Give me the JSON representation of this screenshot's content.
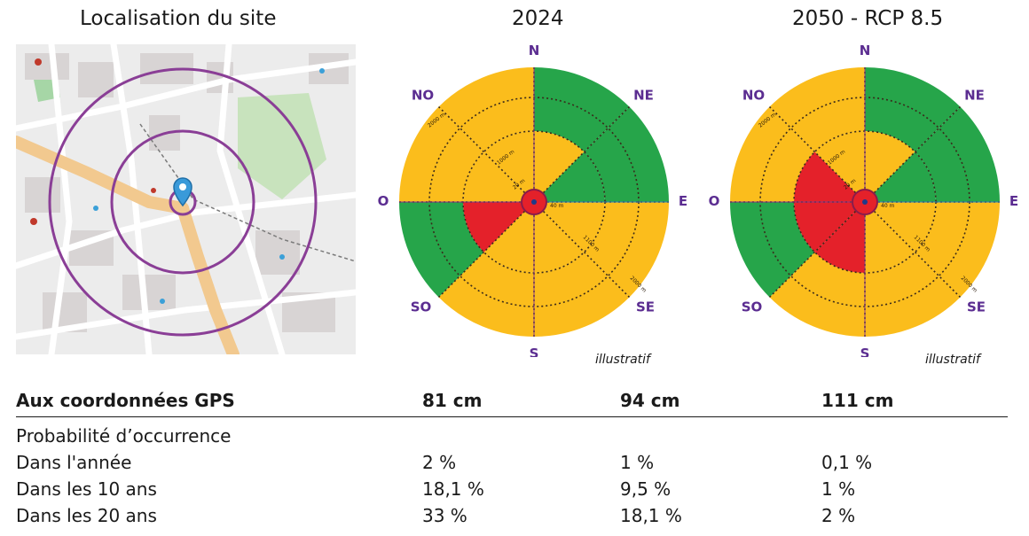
{
  "titles": {
    "map": "Localisation du site",
    "year_2024": "2024",
    "year_2050": "2050 - RCP 8.5"
  },
  "roses": [
    {
      "id": "2024",
      "directions": [
        "N",
        "NE",
        "E",
        "SE",
        "S",
        "SO",
        "O",
        "NO"
      ],
      "distance_labels": [
        "2000 m",
        "1000 m",
        "20 m",
        "40 m",
        "1100 m",
        "2000 m"
      ],
      "note": "illustratif",
      "sectors": [
        {
          "sector": "N-NE",
          "inner": "yellow",
          "outer": "green"
        },
        {
          "sector": "NE-E",
          "inner": "green",
          "outer": "green"
        },
        {
          "sector": "E-SE",
          "inner": "yellow",
          "outer": "yellow"
        },
        {
          "sector": "SE-S",
          "inner": "yellow",
          "outer": "yellow"
        },
        {
          "sector": "S-SO",
          "inner": "yellow",
          "outer": "yellow"
        },
        {
          "sector": "SO-O",
          "inner": "red",
          "outer": "green"
        },
        {
          "sector": "O-NO",
          "inner": "yellow",
          "outer": "yellow"
        },
        {
          "sector": "NO-N",
          "inner": "yellow",
          "outer": "yellow"
        }
      ]
    },
    {
      "id": "2050",
      "directions": [
        "N",
        "NE",
        "E",
        "SE",
        "S",
        "SO",
        "O",
        "NO"
      ],
      "distance_labels": [
        "2000 m",
        "1000 m",
        "20 m",
        "40 m",
        "1100 m",
        "2000 m"
      ],
      "note": "illustratif",
      "sectors": [
        {
          "sector": "N-NE",
          "inner": "yellow",
          "outer": "green"
        },
        {
          "sector": "NE-E",
          "inner": "green",
          "outer": "green"
        },
        {
          "sector": "E-SE",
          "inner": "yellow",
          "outer": "yellow"
        },
        {
          "sector": "SE-S",
          "inner": "yellow",
          "outer": "yellow"
        },
        {
          "sector": "S-SO",
          "inner": "red",
          "outer": "yellow"
        },
        {
          "sector": "SO-O",
          "inner": "red",
          "outer": "green"
        },
        {
          "sector": "O-NO",
          "inner": "red",
          "outer": "yellow"
        },
        {
          "sector": "NO-N",
          "inner": "yellow",
          "outer": "yellow"
        }
      ]
    }
  ],
  "colors": {
    "green": "#26a54a",
    "yellow": "#fbbd1c",
    "red": "#e4212a",
    "purple": "#5b2d91",
    "blue_line": "#2e86c1",
    "map_circle": "#8a3e96"
  },
  "table": {
    "header": {
      "label": "Aux coordonnées GPS",
      "v2024": "81 cm",
      "v2024b": "94 cm",
      "v2050": "111 cm"
    },
    "subheader": "Probabilité d’occurrence",
    "rows": [
      {
        "label": "Dans l'année",
        "a": "2 %",
        "b": "1 %",
        "c": "0,1 %"
      },
      {
        "label": "Dans les 10 ans",
        "a": "18,1 %",
        "b": "9,5 %",
        "c": "1 %"
      },
      {
        "label": "Dans les 20 ans",
        "a": "33 %",
        "b": "18,1 %",
        "c": "2 %"
      }
    ]
  }
}
